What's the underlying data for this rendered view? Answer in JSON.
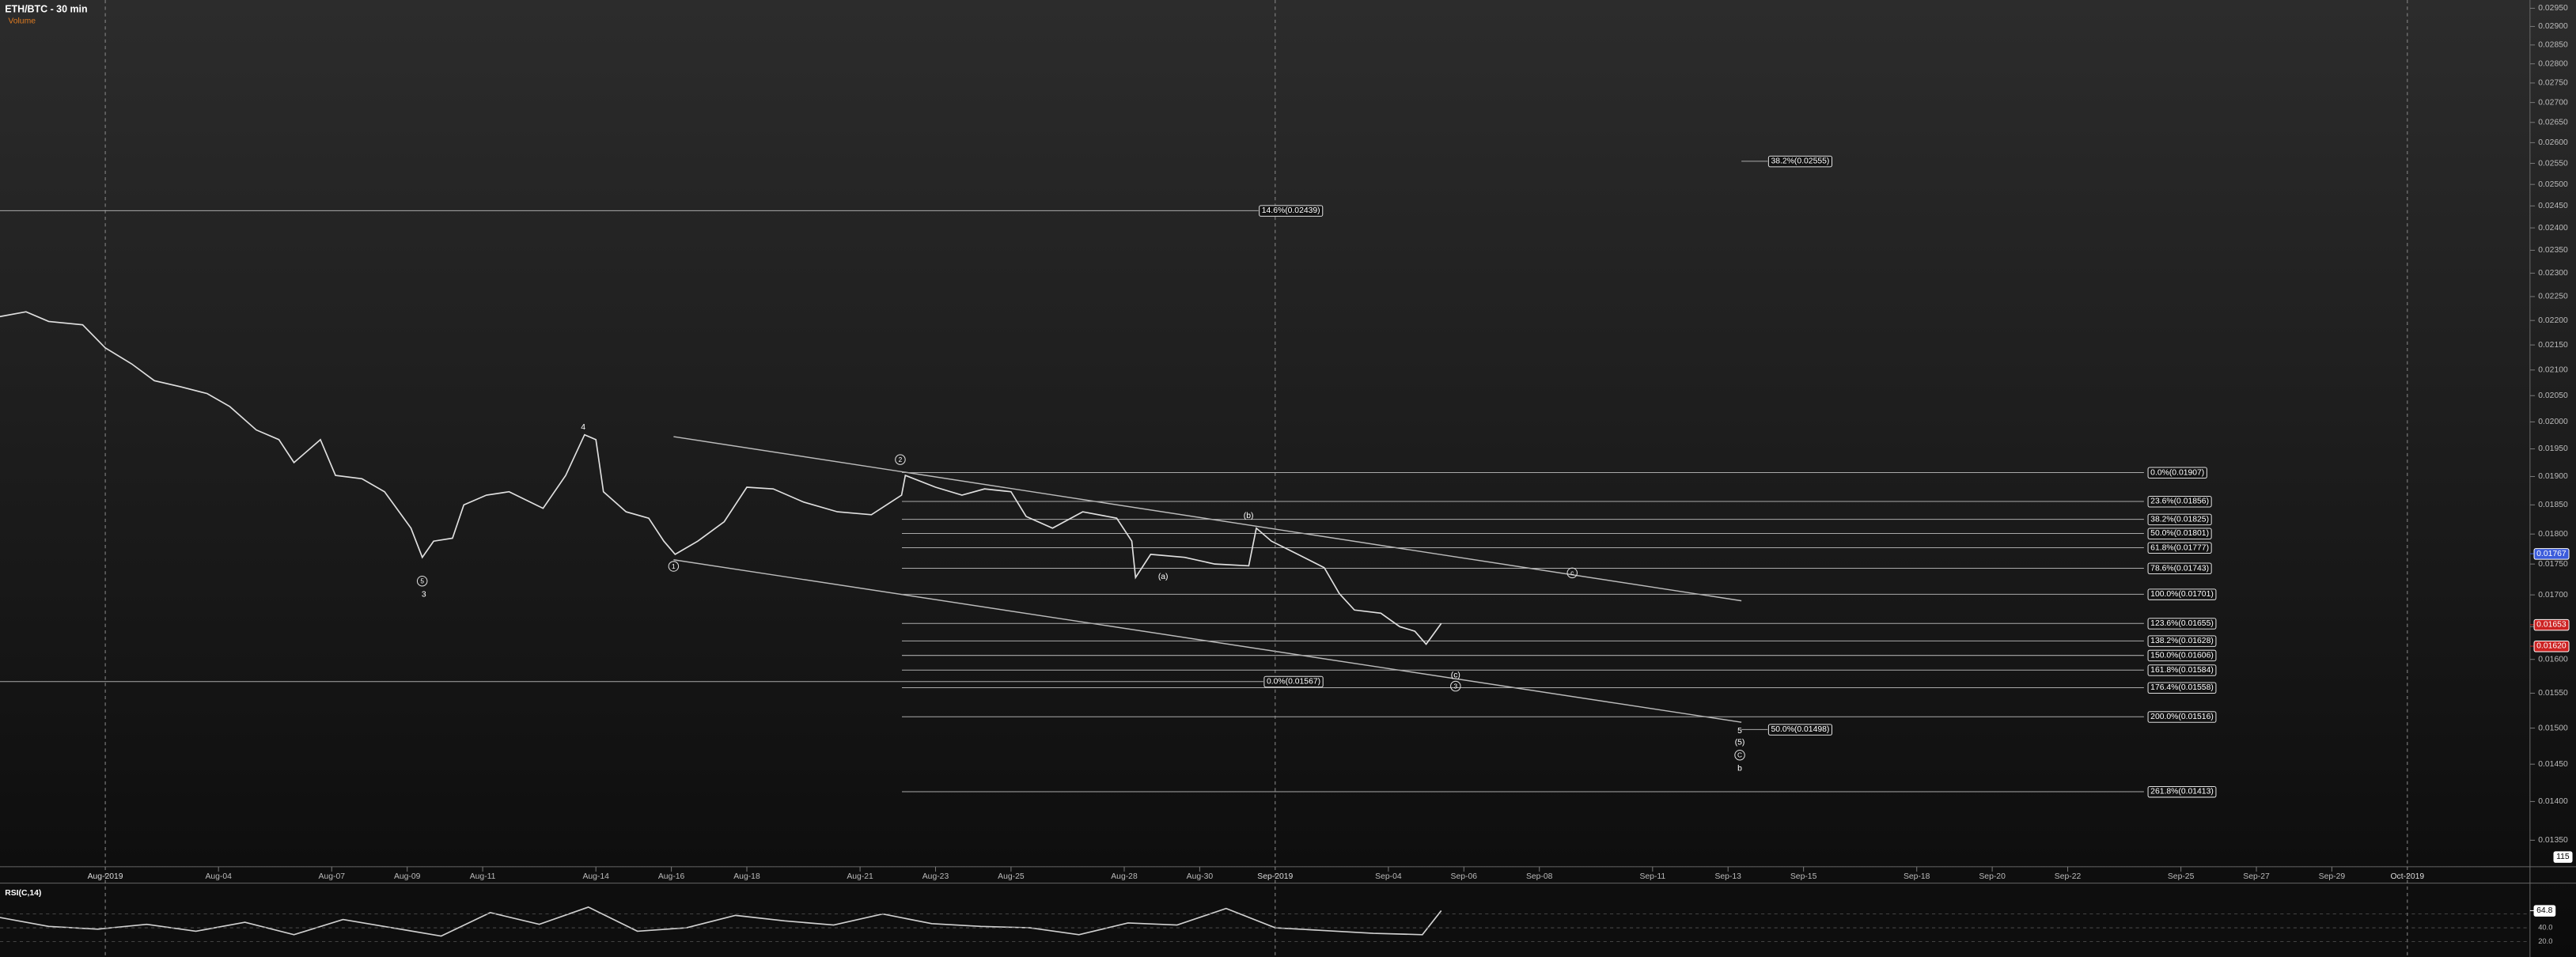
{
  "chart_data": [
    {
      "type": "line",
      "title": "ETH/BTC - 30 min",
      "subtitle": "Volume",
      "log_scale": true,
      "xlim": [
        -1.79,
        65.25
      ],
      "ylim": [
        0.01327,
        0.02973
      ],
      "x": [
        -1.8,
        -1.1,
        -0.5,
        0.4,
        1.0,
        1.7,
        2.3,
        3.0,
        3.7,
        4.3,
        5.0,
        5.6,
        6.0,
        6.7,
        7.1,
        7.8,
        8.4,
        9.1,
        9.4,
        9.7,
        10.2,
        10.5,
        11.1,
        11.7,
        12.6,
        13.2,
        13.7,
        14.0,
        14.2,
        14.8,
        15.4,
        15.8,
        16.1,
        16.7,
        17.4,
        18.0,
        18.7,
        19.5,
        20.4,
        21.3,
        22.1,
        22.2,
        23.0,
        23.7,
        24.3,
        25.0,
        25.4,
        26.1,
        26.9,
        27.8,
        28.2,
        28.3,
        28.7,
        29.6,
        30.4,
        31.3,
        31.5,
        31.9,
        32.6,
        33.3,
        33.7,
        34.1,
        34.8,
        35.3,
        35.7,
        36.0,
        36.4
      ],
      "values": [
        0.02208,
        0.02218,
        0.02198,
        0.02191,
        0.02144,
        0.02112,
        0.02079,
        0.02067,
        0.02054,
        0.02029,
        0.01985,
        0.01967,
        0.01925,
        0.01967,
        0.01902,
        0.01896,
        0.01873,
        0.0181,
        0.01761,
        0.01788,
        0.01793,
        0.0185,
        0.01867,
        0.01873,
        0.01844,
        0.01902,
        0.01976,
        0.01967,
        0.01873,
        0.01838,
        0.01827,
        0.01788,
        0.01766,
        0.01788,
        0.01821,
        0.01881,
        0.01878,
        0.01855,
        0.01838,
        0.01833,
        0.01867,
        0.01902,
        0.01881,
        0.01867,
        0.01878,
        0.01873,
        0.0183,
        0.0181,
        0.01838,
        0.01827,
        0.01788,
        0.01728,
        0.01766,
        0.01761,
        0.0175,
        0.01747,
        0.0181,
        0.01788,
        0.01766,
        0.01744,
        0.01702,
        0.01676,
        0.01671,
        0.0165,
        0.01643,
        0.01623,
        0.01655
      ],
      "color": "#e0e0e0",
      "yticks": [
        {
          "value": 0.0295,
          "label": "0.02950"
        },
        {
          "value": 0.029,
          "label": "0.02900"
        },
        {
          "value": 0.0285,
          "label": "0.02850"
        },
        {
          "value": 0.028,
          "label": "0.02800"
        },
        {
          "value": 0.0275,
          "label": "0.02750"
        },
        {
          "value": 0.027,
          "label": "0.02700"
        },
        {
          "value": 0.0265,
          "label": "0.02650"
        },
        {
          "value": 0.026,
          "label": "0.02600"
        },
        {
          "value": 0.0255,
          "label": "0.02550"
        },
        {
          "value": 0.025,
          "label": "0.02500"
        },
        {
          "value": 0.0245,
          "label": "0.02450"
        },
        {
          "value": 0.024,
          "label": "0.02400"
        },
        {
          "value": 0.0235,
          "label": "0.02350"
        },
        {
          "value": 0.023,
          "label": "0.02300"
        },
        {
          "value": 0.0225,
          "label": "0.02250"
        },
        {
          "value": 0.022,
          "label": "0.02200"
        },
        {
          "value": 0.0215,
          "label": "0.02150"
        },
        {
          "value": 0.021,
          "label": "0.02100"
        },
        {
          "value": 0.0205,
          "label": "0.02050"
        },
        {
          "value": 0.02,
          "label": "0.02000"
        },
        {
          "value": 0.0195,
          "label": "0.01950"
        },
        {
          "value": 0.019,
          "label": "0.01900"
        },
        {
          "value": 0.0185,
          "label": "0.01850"
        },
        {
          "value": 0.018,
          "label": "0.01800"
        },
        {
          "value": 0.0175,
          "label": "0.01750"
        },
        {
          "value": 0.017,
          "label": "0.01700"
        },
        {
          "value": 0.0165,
          "label": "0.01650"
        },
        {
          "value": 0.016,
          "label": "0.01600"
        },
        {
          "value": 0.0155,
          "label": "0.01550"
        },
        {
          "value": 0.015,
          "label": "0.01500"
        },
        {
          "value": 0.0145,
          "label": "0.01450"
        },
        {
          "value": 0.014,
          "label": "0.01400"
        },
        {
          "value": 0.0135,
          "label": "0.01350"
        }
      ],
      "xticks": [
        {
          "value": 4,
          "label": "Aug-04"
        },
        {
          "value": 7,
          "label": "Aug-07"
        },
        {
          "value": 9,
          "label": "Aug-09"
        },
        {
          "value": 11,
          "label": "Aug-11"
        },
        {
          "value": 14,
          "label": "Aug-14"
        },
        {
          "value": 16,
          "label": "Aug-16"
        },
        {
          "value": 18,
          "label": "Aug-18"
        },
        {
          "value": 21,
          "label": "Aug-21"
        },
        {
          "value": 23,
          "label": "Aug-23"
        },
        {
          "value": 25,
          "label": "Aug-25"
        },
        {
          "value": 28,
          "label": "Aug-28"
        },
        {
          "value": 30,
          "label": "Aug-30"
        },
        {
          "value": 35,
          "label": "Sep-04"
        },
        {
          "value": 37,
          "label": "Sep-06"
        },
        {
          "value": 39,
          "label": "Sep-08"
        },
        {
          "value": 42,
          "label": "Sep-11"
        },
        {
          "value": 44,
          "label": "Sep-13"
        },
        {
          "value": 46,
          "label": "Sep-15"
        },
        {
          "value": 49,
          "label": "Sep-18"
        },
        {
          "value": 51,
          "label": "Sep-20"
        },
        {
          "value": 53,
          "label": "Sep-22"
        },
        {
          "value": 56,
          "label": "Sep-25"
        },
        {
          "value": 58,
          "label": "Sep-27"
        },
        {
          "value": 60,
          "label": "Sep-29"
        }
      ],
      "major_xticks": [
        {
          "value": 1,
          "label": "Aug-2019"
        },
        {
          "value": 32,
          "label": "Sep-2019"
        },
        {
          "value": 62,
          "label": "Oct-2019"
        }
      ],
      "fib_levels": [
        {
          "value": 0.01907,
          "label": "0.0%(0.01907)"
        },
        {
          "value": 0.01856,
          "label": "23.6%(0.01856)"
        },
        {
          "value": 0.01825,
          "label": "38.2%(0.01825)"
        },
        {
          "value": 0.01801,
          "label": "50.0%(0.01801)"
        },
        {
          "value": 0.01777,
          "label": "61.8%(0.01777)"
        },
        {
          "value": 0.01743,
          "label": "78.6%(0.01743)"
        },
        {
          "value": 0.01701,
          "label": "100.0%(0.01701)"
        },
        {
          "value": 0.01655,
          "label": "123.6%(0.01655)"
        },
        {
          "value": 0.01628,
          "label": "138.2%(0.01628)"
        },
        {
          "value": 0.01606,
          "label": "150.0%(0.01606)"
        },
        {
          "value": 0.01584,
          "label": "161.8%(0.01584)"
        },
        {
          "value": 0.01558,
          "label": "176.4%(0.01558)"
        },
        {
          "value": 0.01516,
          "label": "200.0%(0.01516)"
        },
        {
          "value": 0.01413,
          "label": "261.8%(0.01413)"
        }
      ],
      "other_levels": [
        {
          "value": 0.02439,
          "label": "14.6%(0.02439)"
        },
        {
          "value": 0.01567,
          "label": "0.0%(0.01567)"
        },
        {
          "value": 0.02555,
          "label": "38.2%(0.02555)"
        },
        {
          "value": 0.01498,
          "label": "50.0%(0.01498)"
        }
      ],
      "markers": [
        {
          "value": 0.01767,
          "label": "0.01767",
          "color": "#3b5bdb"
        },
        {
          "value": 0.01653,
          "label": "0.01653",
          "color": "#cc2222"
        },
        {
          "value": 0.0162,
          "label": "0.01620",
          "color": "#cc2222"
        }
      ],
      "wave_labels": [
        "4",
        "5",
        "3",
        "1",
        "2",
        "(b)",
        "(a)",
        "c",
        "(c)",
        "3",
        "5",
        "(5)",
        "C",
        "b"
      ],
      "volume_ticks": [
        115
      ]
    },
    {
      "type": "line",
      "title": "RSI(C,14)",
      "ylim": [
        0,
        100
      ],
      "color": "#d0d0d0",
      "x": [
        -1.8,
        -0.5,
        0.8,
        2.1,
        3.4,
        4.7,
        6.0,
        7.3,
        8.6,
        9.9,
        11.2,
        12.5,
        13.8,
        15.1,
        16.4,
        17.7,
        19.0,
        20.3,
        21.6,
        22.9,
        24.2,
        25.5,
        26.8,
        28.1,
        29.4,
        30.7,
        32.0,
        33.3,
        34.6,
        35.9,
        36.4
      ],
      "values": [
        55,
        42,
        38,
        45,
        35,
        48,
        30,
        52,
        40,
        28,
        62,
        45,
        70,
        35,
        40,
        58,
        50,
        44,
        60,
        46,
        42,
        40,
        30,
        47,
        44,
        68,
        40,
        36,
        32,
        30,
        64.8
      ],
      "yticks": [
        {
          "value": 60,
          "label": "60.0"
        },
        {
          "value": 40,
          "label": "40.0"
        },
        {
          "value": 20,
          "label": "20.0"
        }
      ],
      "markers": [
        {
          "value": 64.8,
          "label": "64.8",
          "color": "#ffffff"
        }
      ]
    }
  ]
}
